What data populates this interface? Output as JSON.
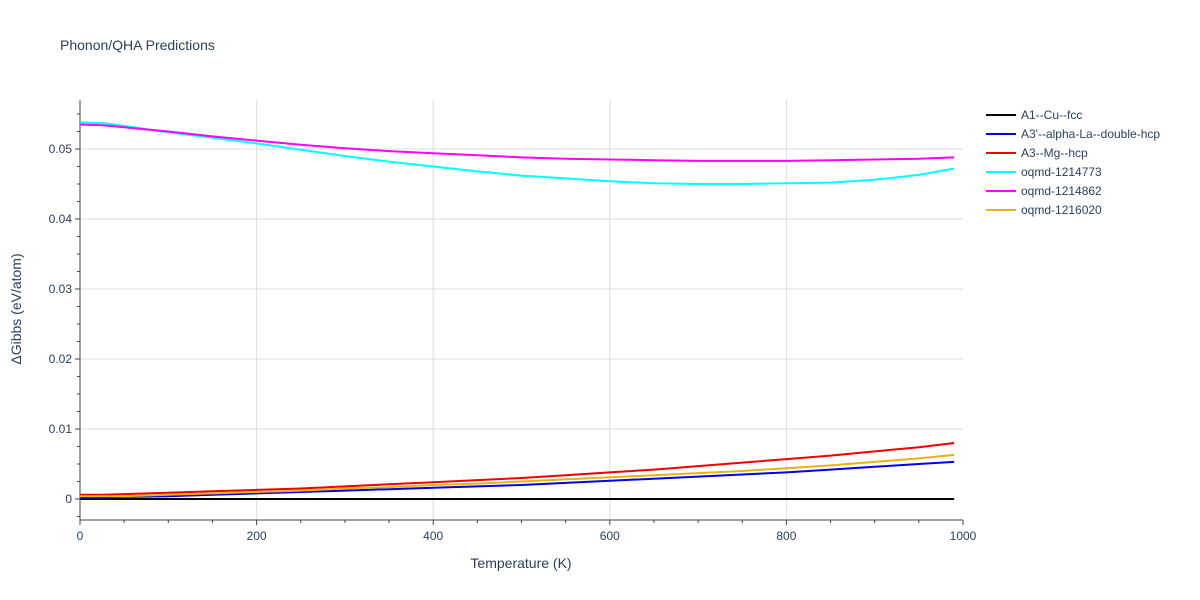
{
  "chart_data": {
    "type": "line",
    "title": "Phonon/QHA Predictions",
    "xlabel": "Temperature (K)",
    "ylabel": "ΔGibbs (eV/atom)",
    "xlim": [
      0,
      1000
    ],
    "ylim": [
      -0.003,
      0.057
    ],
    "x_ticks": [
      0,
      200,
      400,
      600,
      800,
      1000
    ],
    "x_tick_labels": [
      "0",
      "200",
      "400",
      "600",
      "800",
      "1000"
    ],
    "y_ticks": [
      0,
      0.01,
      0.02,
      0.03,
      0.04,
      0.05
    ],
    "y_tick_labels": [
      "0",
      "0.01",
      "0.02",
      "0.03",
      "0.04",
      "0.05"
    ],
    "grid": true,
    "legend_position": "right",
    "x": [
      0,
      25,
      50,
      100,
      150,
      200,
      250,
      300,
      350,
      400,
      450,
      500,
      550,
      600,
      650,
      700,
      750,
      800,
      850,
      900,
      950,
      990
    ],
    "series": [
      {
        "name": "A1--Cu--fcc",
        "color": "#000000",
        "values": [
          0,
          0,
          0,
          0,
          0,
          0,
          0,
          0,
          0,
          0,
          0,
          0,
          0,
          0,
          0,
          0,
          0,
          0,
          0,
          0,
          0,
          0
        ]
      },
      {
        "name": "A3'--alpha-La--double-hcp",
        "color": "#0000ee",
        "values": [
          0.0002,
          0.0002,
          0.0003,
          0.0004,
          0.0006,
          0.0008,
          0.001,
          0.0012,
          0.0014,
          0.0016,
          0.0018,
          0.002,
          0.0023,
          0.0026,
          0.0029,
          0.0032,
          0.0035,
          0.0038,
          0.0042,
          0.0046,
          0.005,
          0.0053
        ]
      },
      {
        "name": "A3--Mg--hcp",
        "color": "#ee0000",
        "values": [
          0.0006,
          0.0006,
          0.0007,
          0.0009,
          0.0011,
          0.0013,
          0.0015,
          0.0018,
          0.0021,
          0.0024,
          0.0027,
          0.003,
          0.0034,
          0.0038,
          0.0042,
          0.0047,
          0.0052,
          0.0057,
          0.0062,
          0.0068,
          0.0074,
          0.008
        ]
      },
      {
        "name": "oqmd-1214773",
        "color": "#00ffff",
        "values": [
          0.0538,
          0.0537,
          0.0533,
          0.0524,
          0.0516,
          0.0508,
          0.0499,
          0.049,
          0.0482,
          0.0475,
          0.0468,
          0.0462,
          0.0458,
          0.0454,
          0.0451,
          0.045,
          0.045,
          0.0451,
          0.0452,
          0.0456,
          0.0463,
          0.0472
        ]
      },
      {
        "name": "oqmd-1214862",
        "color": "#ff00ff",
        "values": [
          0.0535,
          0.0534,
          0.0531,
          0.0525,
          0.0518,
          0.0512,
          0.0506,
          0.0501,
          0.0497,
          0.0494,
          0.0491,
          0.0488,
          0.0486,
          0.0485,
          0.0484,
          0.0483,
          0.0483,
          0.0483,
          0.0484,
          0.0485,
          0.0486,
          0.0488
        ]
      },
      {
        "name": "oqmd-1216020",
        "color": "#e6b219",
        "values": [
          0.0004,
          0.0004,
          0.0004,
          0.0006,
          0.0008,
          0.001,
          0.0012,
          0.0015,
          0.0017,
          0.002,
          0.0022,
          0.0025,
          0.0028,
          0.0031,
          0.0034,
          0.0037,
          0.004,
          0.0044,
          0.0048,
          0.0053,
          0.0058,
          0.0063
        ]
      }
    ]
  }
}
